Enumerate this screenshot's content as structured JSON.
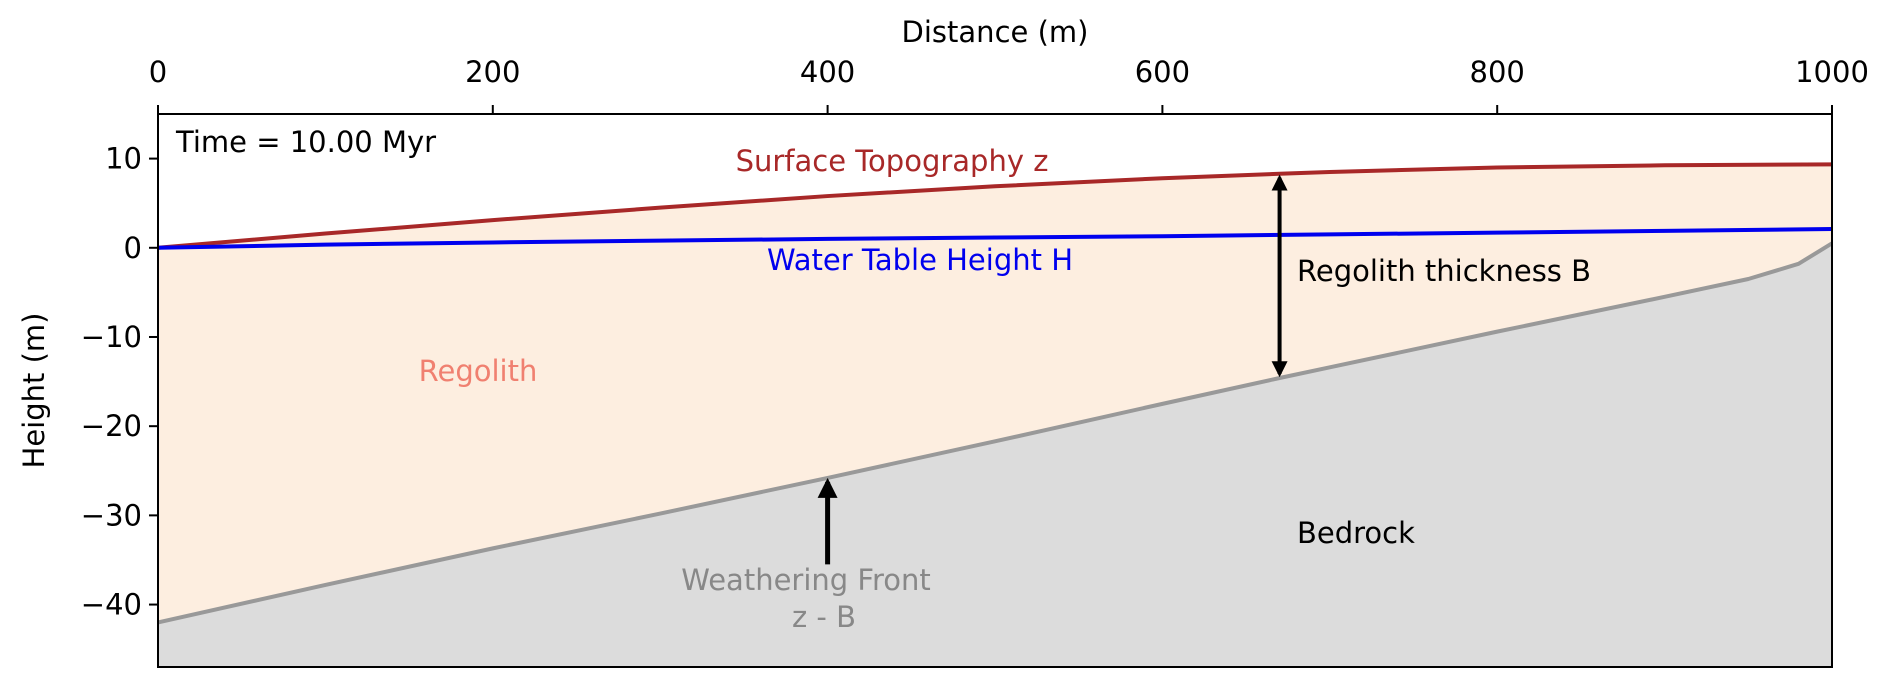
{
  "chart_data": {
    "type": "area",
    "xlabel": "Distance (m)",
    "ylabel": "Height (m)",
    "xlim": [
      0,
      1000
    ],
    "ylim": [
      -47,
      15
    ],
    "x_axis_position": "top",
    "grid": false,
    "x_ticks": [
      0,
      200,
      400,
      600,
      800,
      1000
    ],
    "y_ticks": [
      10,
      0,
      -10,
      -20,
      -30,
      -40
    ],
    "x_tick_labels": [
      "0",
      "200",
      "400",
      "600",
      "800",
      "1000"
    ],
    "y_tick_labels": [
      "10",
      "0",
      "−10",
      "−20",
      "−30",
      "−40"
    ],
    "series": [
      {
        "name": "Surface Topography z",
        "color": "#a82828",
        "x": [
          0,
          100,
          200,
          300,
          400,
          500,
          600,
          670,
          700,
          800,
          900,
          1000
        ],
        "y": [
          0,
          1.6,
          3.1,
          4.5,
          5.8,
          6.9,
          7.8,
          8.3,
          8.5,
          9.0,
          9.25,
          9.35
        ]
      },
      {
        "name": "Water Table Height H",
        "color": "#0000ee",
        "x": [
          0,
          100,
          200,
          300,
          400,
          500,
          600,
          700,
          800,
          900,
          1000
        ],
        "y": [
          0,
          0.35,
          0.6,
          0.8,
          1.0,
          1.15,
          1.3,
          1.5,
          1.7,
          1.9,
          2.1
        ]
      },
      {
        "name": "Weathering Front z - B",
        "color": "#999999",
        "x": [
          0,
          100,
          200,
          300,
          400,
          500,
          600,
          670,
          700,
          800,
          900,
          950,
          980,
          1000
        ],
        "y": [
          -42,
          -37.8,
          -33.7,
          -29.8,
          -25.8,
          -21.7,
          -17.5,
          -14.6,
          -13.4,
          -9.4,
          -5.5,
          -3.5,
          -1.8,
          0.5
        ]
      }
    ],
    "fills": {
      "regolith": "#fdeee0",
      "bedrock": "#dcdcdc"
    },
    "annotations": {
      "time": "Time = 10.00 Myr",
      "surface": "Surface Topography z",
      "water": "Water Table Height H",
      "regolith": "Regolith",
      "thickness": "Regolith thickness B",
      "bedrock": "Bedrock",
      "front_line1": "Weathering Front",
      "front_line2": "z - B"
    },
    "annotation_colors": {
      "surface": "#a82828",
      "water": "#0000ee",
      "regolith": "#f08070",
      "front": "#888888",
      "default": "#000000"
    },
    "arrows": {
      "thickness": {
        "x": 670,
        "y_top": 8.3,
        "y_bottom": -14.6
      },
      "front": {
        "x": 400,
        "y_tail": -35.5,
        "y_head": -25.8
      }
    }
  }
}
